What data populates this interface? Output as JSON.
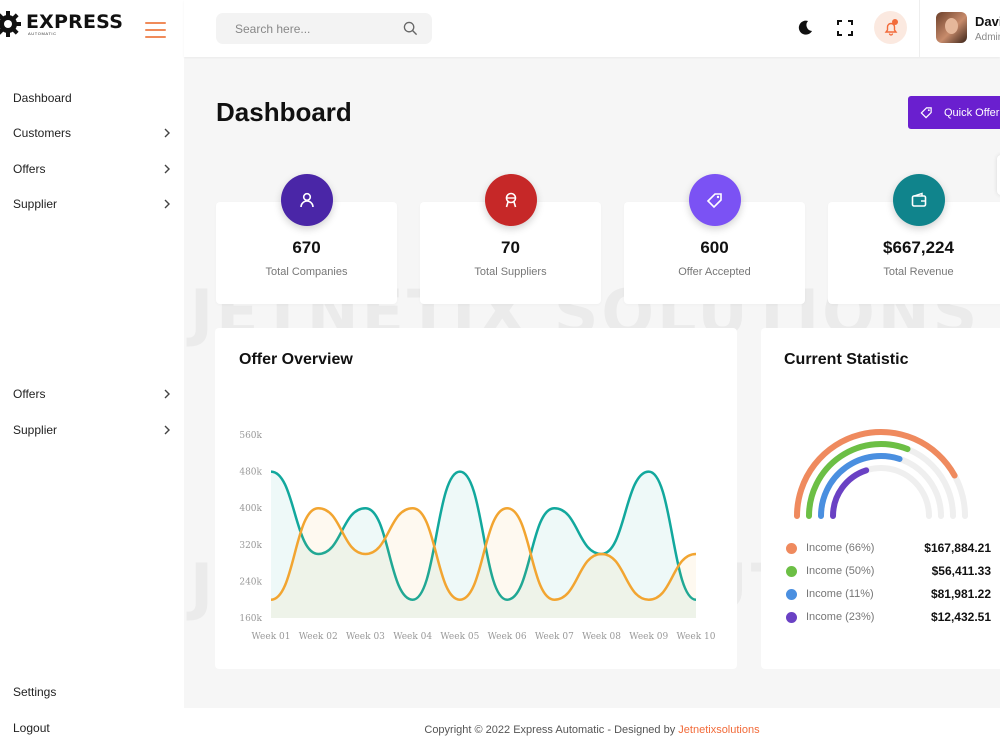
{
  "brand": {
    "title": "EXPRESS",
    "subtitle": "AUTOMATIC"
  },
  "sidebar": {
    "items": [
      {
        "label": "Dashboard",
        "has_chevron": false
      },
      {
        "label": "Customers",
        "has_chevron": true
      },
      {
        "label": "Offers",
        "has_chevron": true
      },
      {
        "label": "Supplier",
        "has_chevron": true
      },
      {
        "label": "Offers",
        "has_chevron": true
      },
      {
        "label": "Supplier",
        "has_chevron": true
      },
      {
        "label": "Settings",
        "has_chevron": false
      },
      {
        "label": "Logout",
        "has_chevron": false
      }
    ]
  },
  "header": {
    "search_placeholder": "Search here...",
    "user_name": "David",
    "user_role": "Admin"
  },
  "page": {
    "title": "Dashboard",
    "quick_offer_label": "Quick Offer"
  },
  "stats": [
    {
      "value": "670",
      "label": "Total Companies",
      "color": "#4a26a7",
      "icon": "user-icon"
    },
    {
      "value": "70",
      "label": "Total Suppliers",
      "color": "#c62828",
      "icon": "award-icon"
    },
    {
      "value": "600",
      "label": "Offer Accepted",
      "color": "#7b52f4",
      "icon": "tag-icon"
    },
    {
      "value": "$667,224",
      "label": "Total Revenue",
      "color": "#10848c",
      "icon": "wallet-icon"
    }
  ],
  "offer_overview": {
    "title": "Offer Overview"
  },
  "current_statistic": {
    "title": "Current Statistic",
    "items": [
      {
        "label": "Income (66%)",
        "amount": "$167,884.21",
        "color": "#ef8a5e",
        "percent": 66
      },
      {
        "label": "Income (50%)",
        "amount": "$56,411.33",
        "color": "#6cbf45",
        "percent": 50
      },
      {
        "label": "Income (11%)",
        "amount": "$81,981.22",
        "color": "#4a8fe0",
        "percent": 11
      },
      {
        "label": "Income (23%)",
        "amount": "$12,432.51",
        "color": "#6a41c4",
        "percent": 23
      }
    ]
  },
  "chart_data": {
    "type": "area",
    "categories": [
      "Week 01",
      "Week 02",
      "Week 03",
      "Week 04",
      "Week 05",
      "Week 06",
      "Week 07",
      "Week 08",
      "Week 09",
      "Week 10"
    ],
    "y_tick_labels": [
      "160k",
      "240k",
      "320k",
      "400k",
      "480k",
      "560k"
    ],
    "ylim": [
      160,
      560
    ],
    "series": [
      {
        "color": "#12a89d",
        "values": [
          480,
          300,
          400,
          200,
          480,
          200,
          400,
          300,
          480,
          200
        ]
      },
      {
        "color": "#f2a531",
        "values": [
          200,
          400,
          300,
          400,
          200,
          400,
          200,
          300,
          200,
          300
        ]
      }
    ],
    "grid": false
  },
  "watermark": "JETNETIX SOLUTIONS",
  "footer": {
    "text": "Copyright © 2022 Express Automatic - Designed by",
    "link": "Jetnetixsolutions"
  }
}
